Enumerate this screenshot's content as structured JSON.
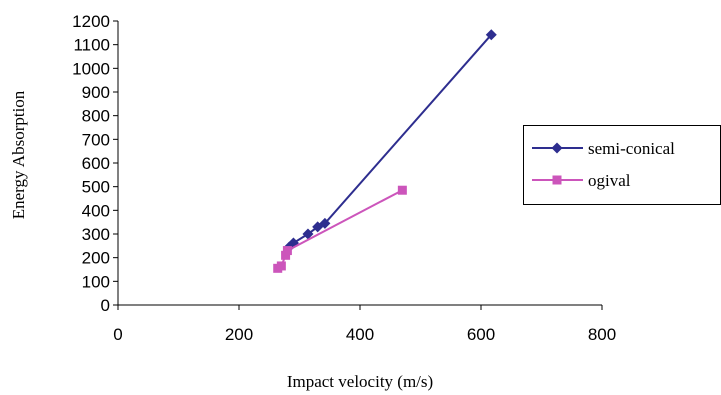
{
  "chart_data": {
    "type": "line",
    "title": "",
    "xlabel": "Impact velocity (m/s)",
    "ylabel": "Energy Absorption",
    "xlim": [
      0,
      800
    ],
    "ylim": [
      0,
      1200
    ],
    "x_ticks": [
      0,
      200,
      400,
      600,
      800
    ],
    "y_ticks": [
      0,
      100,
      200,
      300,
      400,
      500,
      600,
      700,
      800,
      900,
      1000,
      1100,
      1200
    ],
    "grid": false,
    "legend_position": "right",
    "series": [
      {
        "name": "semi-conical",
        "color": "#2e2e8f",
        "marker": "diamond",
        "x": [
          283,
          290,
          314,
          330,
          342,
          617
        ],
        "y": [
          245,
          262,
          300,
          330,
          345,
          1142
        ]
      },
      {
        "name": "ogival",
        "color": "#cc55bb",
        "marker": "square",
        "x": [
          264,
          270,
          277,
          280,
          470
        ],
        "y": [
          155,
          165,
          210,
          230,
          485
        ]
      }
    ]
  }
}
